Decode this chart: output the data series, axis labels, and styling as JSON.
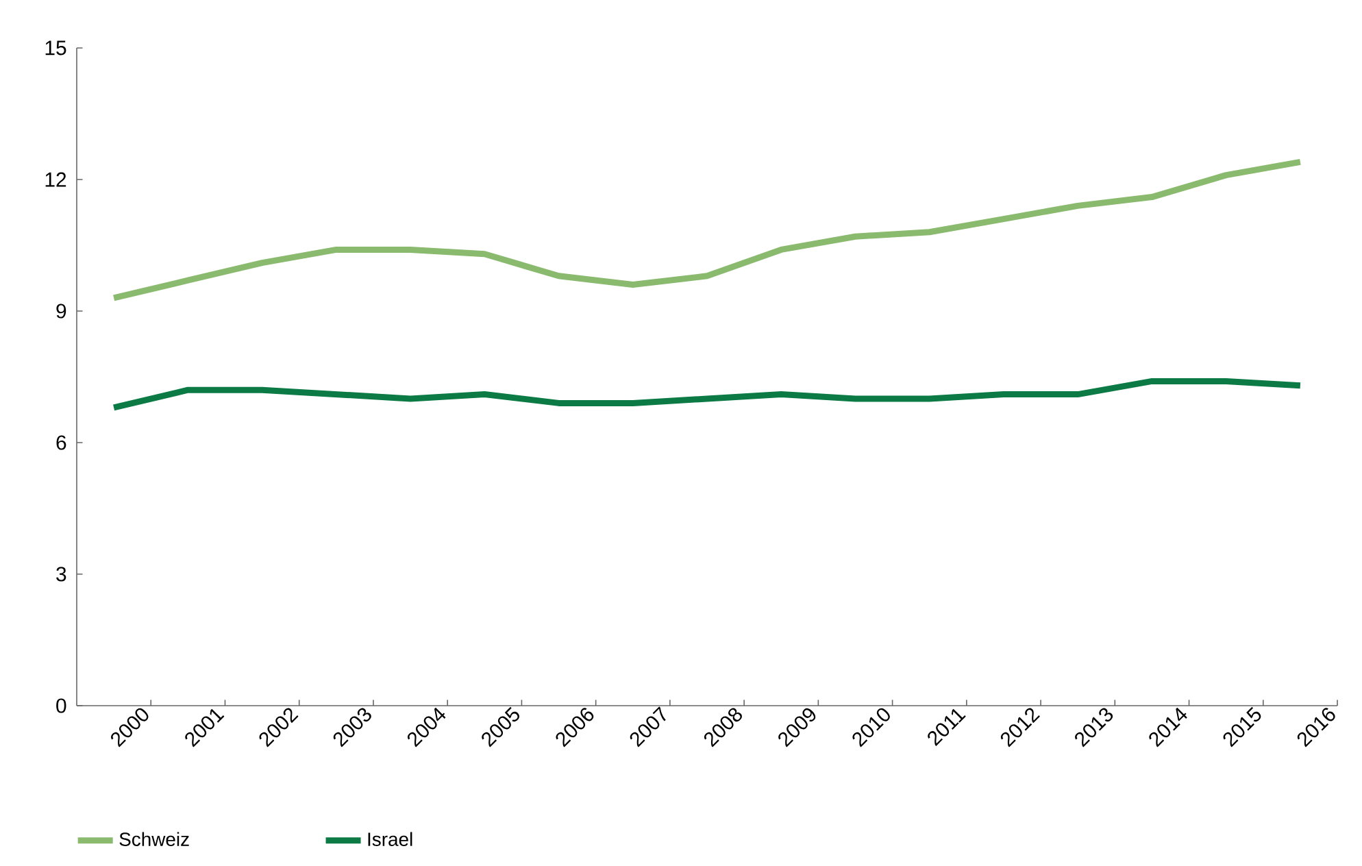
{
  "chart_data": {
    "type": "line",
    "xlim": [
      1999,
      2016
    ],
    "xticks": [
      2000,
      2001,
      2002,
      2003,
      2004,
      2005,
      2006,
      2007,
      2008,
      2009,
      2010,
      2011,
      2012,
      2013,
      2014,
      2015,
      2016
    ],
    "ylim": [
      0,
      15
    ],
    "yticks": [
      0,
      3,
      6,
      9,
      12,
      15
    ],
    "x": [
      1999.5,
      2000.5,
      2001.5,
      2002.5,
      2003.5,
      2004.5,
      2005.5,
      2006.5,
      2007.5,
      2008.5,
      2009.5,
      2010.5,
      2011.5,
      2012.5,
      2013.5,
      2014.5,
      2015.5
    ],
    "legend": "bottom left",
    "series": [
      {
        "name": "Schweiz",
        "color": "#8aba6e",
        "values": [
          9.3,
          9.7,
          10.1,
          10.4,
          10.4,
          10.3,
          9.8,
          9.6,
          9.8,
          10.4,
          10.7,
          10.8,
          11.1,
          11.4,
          11.6,
          12.1,
          12.4
        ]
      },
      {
        "name": "Israel",
        "color": "#0b7a45",
        "values": [
          6.8,
          7.2,
          7.2,
          7.1,
          7.0,
          7.1,
          6.9,
          6.9,
          7.0,
          7.1,
          7.0,
          7.0,
          7.1,
          7.1,
          7.4,
          7.4,
          7.3
        ]
      }
    ]
  }
}
